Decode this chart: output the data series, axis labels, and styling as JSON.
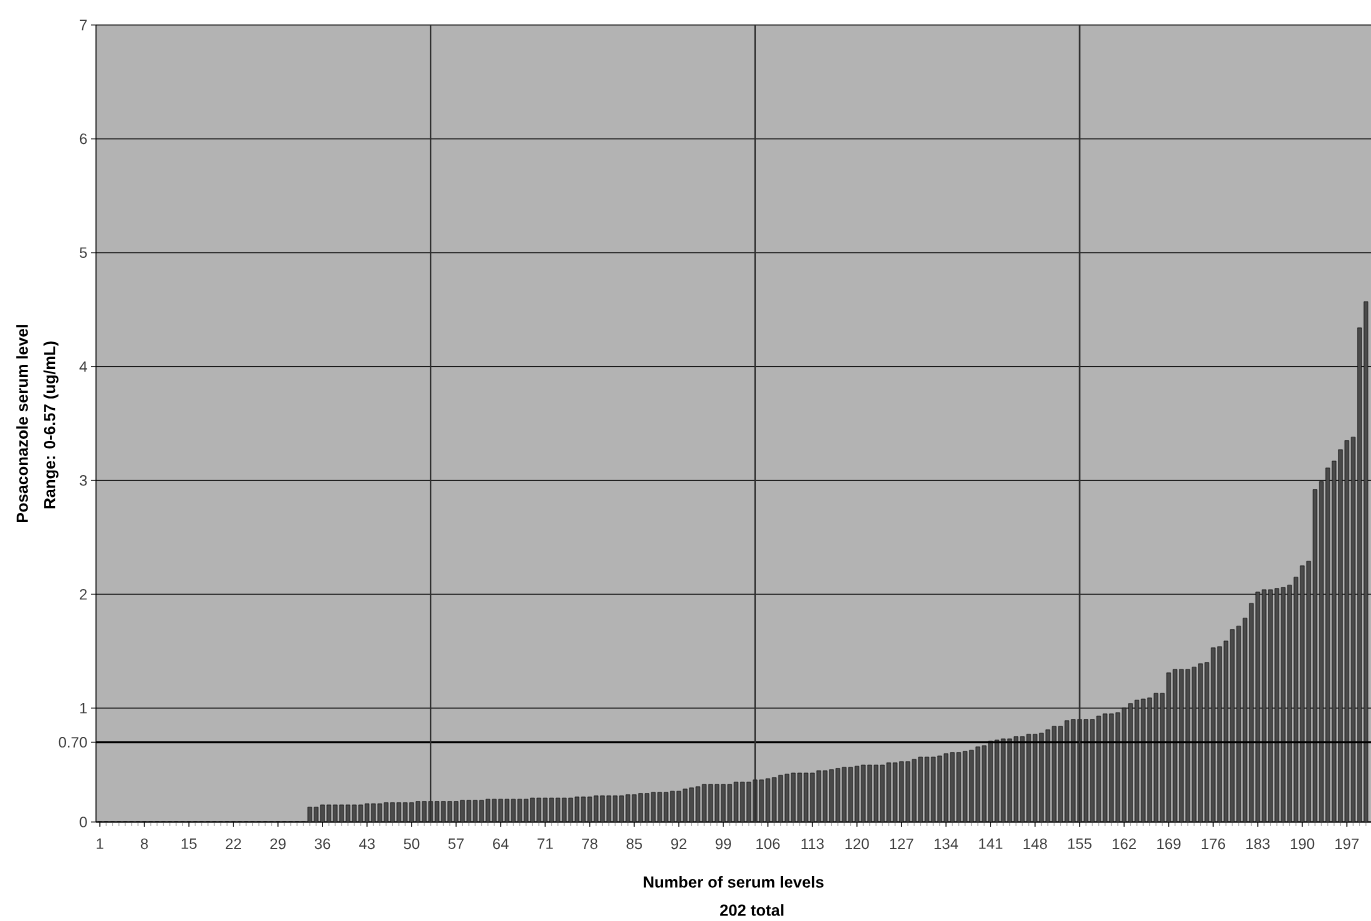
{
  "chart_data": {
    "type": "bar",
    "xlabel": "Number of serum levels",
    "ylabel": "Posaconazole serum level",
    "annotations": [
      "Range: 0-6.57 (ug/mL)",
      "202 total"
    ],
    "x": [
      1,
      2,
      3,
      4,
      5,
      6,
      7,
      8,
      9,
      10,
      11,
      12,
      13,
      14,
      15,
      16,
      17,
      18,
      19,
      20,
      21,
      22,
      23,
      24,
      25,
      26,
      27,
      28,
      29,
      30,
      31,
      32,
      33,
      34,
      35,
      36,
      37,
      38,
      39,
      40,
      41,
      42,
      43,
      44,
      45,
      46,
      47,
      48,
      49,
      50,
      51,
      52,
      53,
      54,
      55,
      56,
      57,
      58,
      59,
      60,
      61,
      62,
      63,
      64,
      65,
      66,
      67,
      68,
      69,
      70,
      71,
      72,
      73,
      74,
      75,
      76,
      77,
      78,
      79,
      80,
      81,
      82,
      83,
      84,
      85,
      86,
      87,
      88,
      89,
      90,
      91,
      92,
      93,
      94,
      95,
      96,
      97,
      98,
      99,
      100,
      101,
      102,
      103,
      104,
      105,
      106,
      107,
      108,
      109,
      110,
      111,
      112,
      113,
      114,
      115,
      116,
      117,
      118,
      119,
      120,
      121,
      122,
      123,
      124,
      125,
      126,
      127,
      128,
      129,
      130,
      131,
      132,
      133,
      134,
      135,
      136,
      137,
      138,
      139,
      140,
      141,
      142,
      143,
      144,
      145,
      146,
      147,
      148,
      149,
      150,
      151,
      152,
      153,
      154,
      155,
      156,
      157,
      158,
      159,
      160,
      161,
      162,
      163,
      164,
      165,
      166,
      167,
      168,
      169,
      170,
      171,
      172,
      173,
      174,
      175,
      176,
      177,
      178,
      179,
      180,
      181,
      182,
      183,
      184,
      185,
      186,
      187,
      188,
      189,
      190,
      191,
      192,
      193,
      194,
      195,
      196,
      197,
      198,
      199,
      200
    ],
    "values": [
      0,
      0,
      0,
      0,
      0,
      0,
      0,
      0,
      0,
      0,
      0,
      0,
      0,
      0,
      0,
      0,
      0,
      0,
      0,
      0,
      0,
      0,
      0,
      0,
      0,
      0,
      0,
      0,
      0,
      0,
      0,
      0,
      0,
      0.13,
      0.13,
      0.15,
      0.15,
      0.15,
      0.15,
      0.15,
      0.15,
      0.15,
      0.16,
      0.16,
      0.16,
      0.17,
      0.17,
      0.17,
      0.17,
      0.17,
      0.18,
      0.18,
      0.18,
      0.18,
      0.18,
      0.18,
      0.18,
      0.19,
      0.19,
      0.19,
      0.19,
      0.2,
      0.2,
      0.2,
      0.2,
      0.2,
      0.2,
      0.2,
      0.21,
      0.21,
      0.21,
      0.21,
      0.21,
      0.21,
      0.21,
      0.22,
      0.22,
      0.22,
      0.23,
      0.23,
      0.23,
      0.23,
      0.23,
      0.24,
      0.24,
      0.25,
      0.25,
      0.26,
      0.26,
      0.26,
      0.27,
      0.27,
      0.29,
      0.3,
      0.31,
      0.33,
      0.33,
      0.33,
      0.33,
      0.33,
      0.35,
      0.35,
      0.35,
      0.37,
      0.37,
      0.38,
      0.39,
      0.41,
      0.42,
      0.43,
      0.43,
      0.43,
      0.43,
      0.45,
      0.45,
      0.46,
      0.47,
      0.48,
      0.48,
      0.49,
      0.5,
      0.5,
      0.5,
      0.5,
      0.52,
      0.52,
      0.53,
      0.53,
      0.55,
      0.57,
      0.57,
      0.57,
      0.58,
      0.6,
      0.61,
      0.61,
      0.62,
      0.63,
      0.66,
      0.67,
      0.71,
      0.72,
      0.73,
      0.73,
      0.75,
      0.75,
      0.77,
      0.77,
      0.78,
      0.81,
      0.84,
      0.84,
      0.89,
      0.9,
      0.9,
      0.9,
      0.9,
      0.93,
      0.95,
      0.95,
      0.96,
      1.0,
      1.04,
      1.07,
      1.08,
      1.09,
      1.13,
      1.13,
      1.31,
      1.34,
      1.34,
      1.34,
      1.36,
      1.39,
      1.4,
      1.53,
      1.54,
      1.59,
      1.69,
      1.72,
      1.79,
      1.92,
      2.02,
      2.04,
      2.04,
      2.05,
      2.06,
      2.08,
      2.15,
      2.25,
      2.29,
      2.92,
      2.99,
      3.11,
      3.17,
      3.27,
      3.35,
      3.38,
      4.34,
      4.57
    ],
    "color": "#4a4a4a",
    "xlim": [
      0.4,
      200.8
    ],
    "ylim": [
      0,
      7
    ],
    "xticks": [
      1,
      8,
      15,
      22,
      29,
      36,
      43,
      50,
      57,
      64,
      71,
      78,
      85,
      92,
      99,
      106,
      113,
      120,
      127,
      134,
      141,
      148,
      155,
      162,
      169,
      176,
      183,
      190,
      197
    ],
    "yticks": [
      0,
      {
        "value": 0.7,
        "label": "0.70"
      },
      1,
      2,
      3,
      4,
      5,
      6,
      7
    ],
    "grid": "y",
    "ref_lines": [
      {
        "axis": "y",
        "value": 0.7,
        "color": "#000000"
      },
      {
        "axis": "x",
        "value": 53,
        "color": "#303030"
      },
      {
        "axis": "x",
        "value": 104,
        "color": "#303030"
      },
      {
        "axis": "x",
        "value": 155,
        "color": "#303030"
      }
    ]
  }
}
